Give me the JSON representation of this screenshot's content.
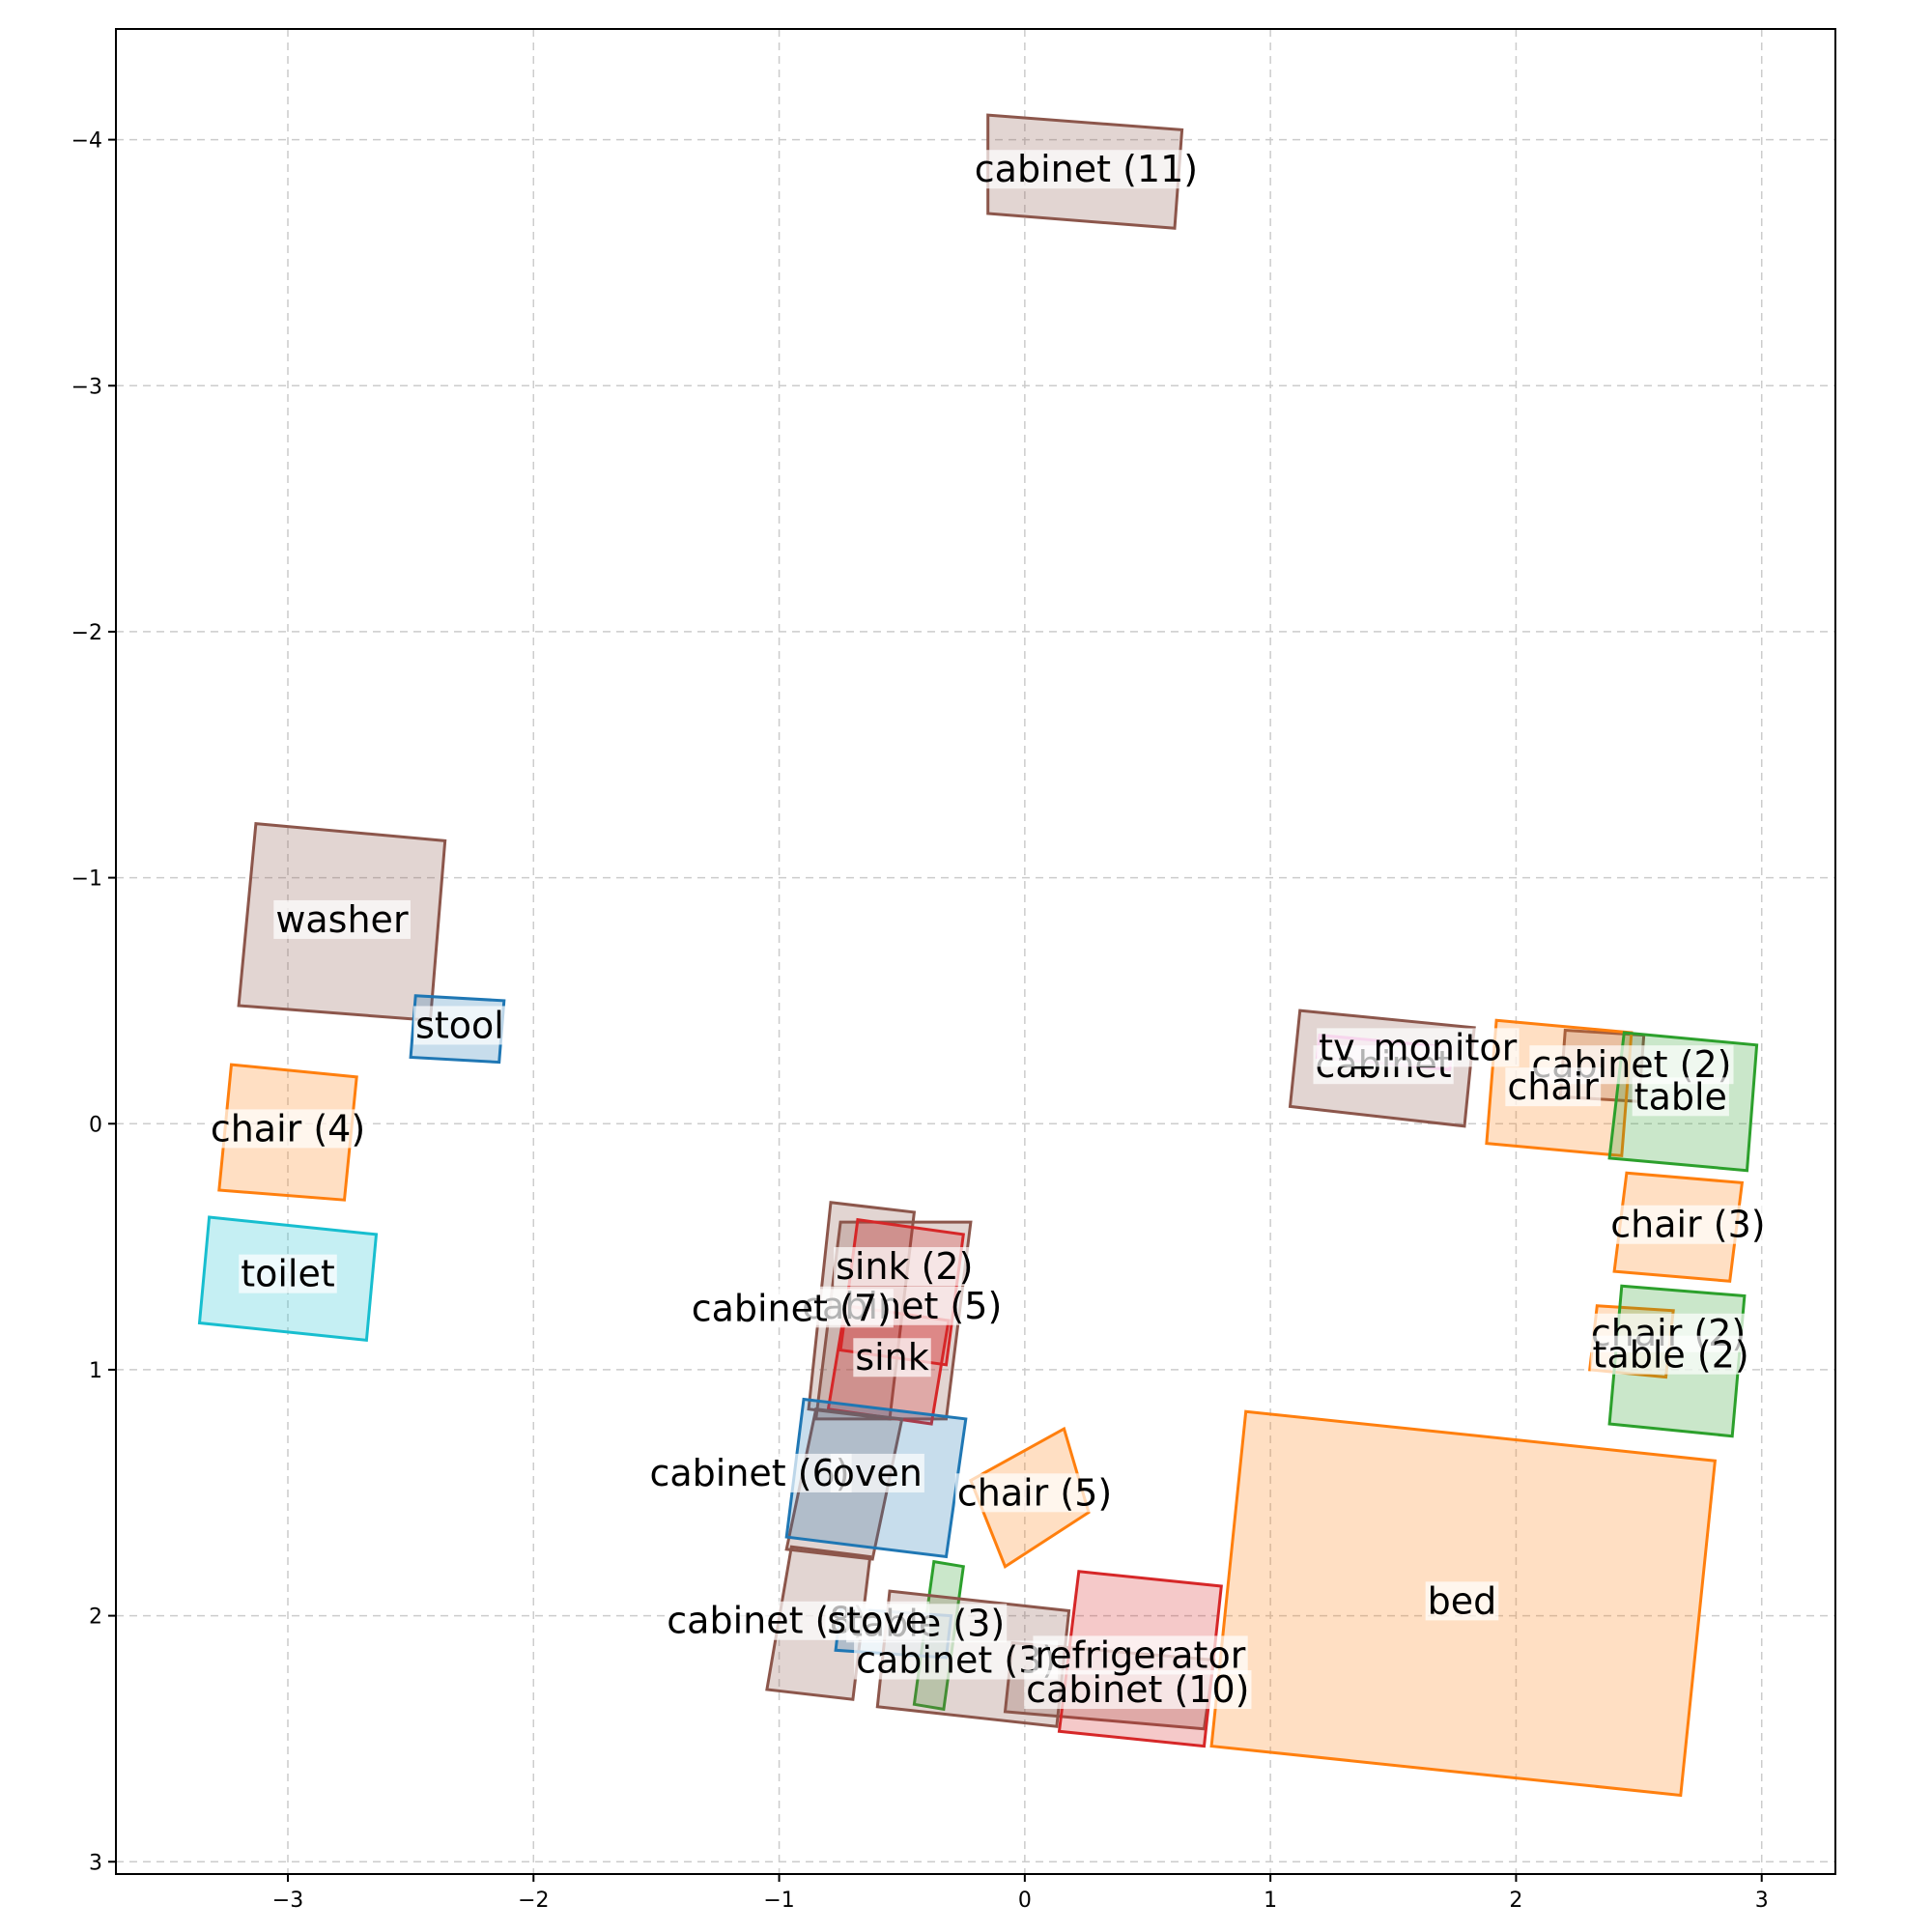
{
  "chart_data": {
    "type": "floor-plan-boxes",
    "title": "",
    "xlabel": "",
    "ylabel": "",
    "xlim": [
      -3.7,
      3.3
    ],
    "ylim": [
      3.05,
      -4.45
    ],
    "grid": true,
    "x_ticks": [
      -3,
      -2,
      -1,
      0,
      1,
      2,
      3
    ],
    "x_tick_labels": [
      "−3",
      "−2",
      "−1",
      "0",
      "1",
      "2",
      "3"
    ],
    "y_ticks": [
      -4,
      -3,
      -2,
      -1,
      0,
      1,
      2,
      3
    ],
    "y_tick_labels": [
      "−4",
      "−3",
      "−2",
      "−1",
      "0",
      "1",
      "2",
      "3"
    ],
    "colors": {
      "cabinet": "#8c564b",
      "chair": "#ff7f0e",
      "table": "#2ca02c",
      "sink": "#d62728",
      "stove": "#1f77b4",
      "stool": "#1f77b4",
      "oven": "#1f77b4",
      "toilet": "#17becf",
      "refrigerator": "#d62728",
      "bed": "#ff7f0e",
      "washer": "#8c564b",
      "tv_monitor": "#e377c2"
    },
    "objects": [
      {
        "label": "cabinet (11)",
        "category": "cabinet",
        "pts": [
          [
            -0.15,
            -4.1
          ],
          [
            0.64,
            -4.04
          ],
          [
            0.61,
            -3.64
          ],
          [
            -0.15,
            -3.7
          ]
        ],
        "label_at": [
          0.25,
          -3.87
        ]
      },
      {
        "label": "washer",
        "category": "washer",
        "pts": [
          [
            -3.13,
            -1.22
          ],
          [
            -2.36,
            -1.15
          ],
          [
            -2.42,
            -0.42
          ],
          [
            -3.2,
            -0.48
          ]
        ],
        "label_at": [
          -2.78,
          -0.82
        ]
      },
      {
        "label": "stool",
        "category": "stool",
        "pts": [
          [
            -2.48,
            -0.52
          ],
          [
            -2.12,
            -0.5
          ],
          [
            -2.14,
            -0.25
          ],
          [
            -2.5,
            -0.27
          ]
        ],
        "label_at": [
          -2.3,
          -0.39
        ]
      },
      {
        "label": "chair (4)",
        "category": "chair",
        "pts": [
          [
            -3.23,
            -0.24
          ],
          [
            -2.72,
            -0.19
          ],
          [
            -2.77,
            0.31
          ],
          [
            -3.28,
            0.27
          ]
        ],
        "label_at": [
          -3.0,
          0.03
        ]
      },
      {
        "label": "toilet",
        "category": "toilet",
        "pts": [
          [
            -3.32,
            0.38
          ],
          [
            -2.64,
            0.45
          ],
          [
            -2.68,
            0.88
          ],
          [
            -3.36,
            0.81
          ]
        ],
        "label_at": [
          -3.0,
          0.62
        ]
      },
      {
        "label": "cabinet (5)",
        "category": "cabinet",
        "pts": [
          [
            -0.75,
            0.4
          ],
          [
            -0.22,
            0.4
          ],
          [
            -0.32,
            1.2
          ],
          [
            -0.85,
            1.2
          ]
        ],
        "label_at": [
          -0.5,
          0.75
        ]
      },
      {
        "label": "cabinet (7)",
        "category": "cabinet",
        "pts": [
          [
            -0.79,
            0.32
          ],
          [
            -0.45,
            0.36
          ],
          [
            -0.55,
            1.2
          ],
          [
            -0.88,
            1.16
          ]
        ],
        "label_at": [
          -0.95,
          0.76
        ]
      },
      {
        "label": "sink (2)",
        "category": "sink",
        "pts": [
          [
            -0.68,
            0.39
          ],
          [
            -0.25,
            0.45
          ],
          [
            -0.32,
            0.98
          ],
          [
            -0.75,
            0.92
          ]
        ],
        "label_at": [
          -0.49,
          0.59
        ]
      },
      {
        "label": "sink",
        "category": "sink",
        "pts": [
          [
            -0.73,
            0.74
          ],
          [
            -0.31,
            0.8
          ],
          [
            -0.38,
            1.22
          ],
          [
            -0.8,
            1.16
          ]
        ],
        "label_at": [
          -0.54,
          0.96
        ]
      },
      {
        "label": "cabinet (6)",
        "category": "cabinet",
        "pts": [
          [
            -0.85,
            1.16
          ],
          [
            -0.5,
            1.2
          ],
          [
            -0.62,
            1.77
          ],
          [
            -0.97,
            1.73
          ]
        ],
        "label_at": [
          -1.12,
          1.43
        ]
      },
      {
        "label": "oven",
        "category": "oven",
        "pts": [
          [
            -0.9,
            1.12
          ],
          [
            -0.24,
            1.2
          ],
          [
            -0.32,
            1.76
          ],
          [
            -0.97,
            1.68
          ]
        ],
        "label_at": [
          -0.6,
          1.43
        ]
      },
      {
        "label": "chair (5)",
        "category": "chair",
        "pts": [
          [
            0.16,
            1.24
          ],
          [
            0.26,
            1.58
          ],
          [
            -0.08,
            1.8
          ],
          [
            -0.22,
            1.45
          ]
        ],
        "label_at": [
          0.04,
          1.51
        ]
      },
      {
        "label": "cabinet (8)",
        "category": "cabinet",
        "pts": [
          [
            -0.95,
            1.72
          ],
          [
            -0.63,
            1.76
          ],
          [
            -0.7,
            2.34
          ],
          [
            -1.05,
            2.3
          ]
        ],
        "label_at": [
          -1.05,
          2.03
        ]
      },
      {
        "label": "table (3)",
        "category": "table",
        "pts": [
          [
            -0.37,
            1.78
          ],
          [
            -0.25,
            1.8
          ],
          [
            -0.33,
            2.38
          ],
          [
            -0.45,
            2.36
          ]
        ],
        "label_at": [
          -0.4,
          2.04
        ]
      },
      {
        "label": "stove",
        "category": "stove",
        "pts": [
          [
            -0.75,
            1.97
          ],
          [
            -0.3,
            2.0
          ],
          [
            -0.32,
            2.17
          ],
          [
            -0.77,
            2.14
          ]
        ],
        "label_at": [
          -0.6,
          2.03
        ]
      },
      {
        "label": "cabinet (3)",
        "category": "cabinet",
        "pts": [
          [
            -0.55,
            1.9
          ],
          [
            0.18,
            1.98
          ],
          [
            0.13,
            2.45
          ],
          [
            -0.6,
            2.37
          ]
        ],
        "label_at": [
          -0.28,
          2.19
        ]
      },
      {
        "label": "cabinet (10)",
        "category": "cabinet",
        "pts": [
          [
            -0.05,
            2.11
          ],
          [
            0.77,
            2.18
          ],
          [
            0.73,
            2.46
          ],
          [
            -0.08,
            2.39
          ]
        ],
        "label_at": [
          0.46,
          2.31
        ]
      },
      {
        "label": "refrigerator",
        "category": "refrigerator",
        "pts": [
          [
            0.22,
            1.82
          ],
          [
            0.8,
            1.88
          ],
          [
            0.73,
            2.53
          ],
          [
            0.14,
            2.47
          ]
        ],
        "label_at": [
          0.47,
          2.17
        ]
      },
      {
        "label": "bed",
        "category": "bed",
        "pts": [
          [
            0.9,
            1.17
          ],
          [
            2.81,
            1.37
          ],
          [
            2.67,
            2.73
          ],
          [
            0.76,
            2.53
          ]
        ],
        "label_at": [
          1.78,
          1.95
        ]
      },
      {
        "label": "cabinet",
        "category": "cabinet",
        "pts": [
          [
            1.12,
            -0.46
          ],
          [
            1.83,
            -0.39
          ],
          [
            1.79,
            0.01
          ],
          [
            1.08,
            -0.07
          ]
        ],
        "label_at": [
          1.46,
          -0.23
        ]
      },
      {
        "label": "tv_monitor",
        "category": "tv_monitor",
        "pts": [
          [
            1.2,
            -0.36
          ],
          [
            1.74,
            -0.31
          ],
          [
            1.73,
            -0.22
          ],
          [
            1.19,
            -0.27
          ]
        ],
        "label_at": [
          1.6,
          -0.3
        ]
      },
      {
        "label": "cabinet (2)",
        "category": "cabinet",
        "pts": [
          [
            2.2,
            -0.38
          ],
          [
            2.52,
            -0.36
          ],
          [
            2.5,
            -0.09
          ],
          [
            2.18,
            -0.11
          ]
        ],
        "label_at": [
          2.47,
          -0.23
        ]
      },
      {
        "label": "chair",
        "category": "chair",
        "pts": [
          [
            1.92,
            -0.42
          ],
          [
            2.47,
            -0.37
          ],
          [
            2.43,
            0.13
          ],
          [
            1.88,
            0.08
          ]
        ],
        "label_at": [
          2.15,
          -0.14
        ]
      },
      {
        "label": "table",
        "category": "table",
        "pts": [
          [
            2.44,
            -0.37
          ],
          [
            2.98,
            -0.32
          ],
          [
            2.94,
            0.19
          ],
          [
            2.38,
            0.14
          ]
        ],
        "label_at": [
          2.67,
          -0.1
        ]
      },
      {
        "label": "chair (3)",
        "category": "chair",
        "pts": [
          [
            2.45,
            0.2
          ],
          [
            2.92,
            0.24
          ],
          [
            2.87,
            0.64
          ],
          [
            2.4,
            0.6
          ]
        ],
        "label_at": [
          2.7,
          0.42
        ]
      },
      {
        "label": "chair (2)",
        "category": "chair",
        "pts": [
          [
            2.33,
            0.74
          ],
          [
            2.64,
            0.76
          ],
          [
            2.61,
            1.03
          ],
          [
            2.3,
            1.0
          ]
        ],
        "label_at": [
          2.62,
          0.86
        ]
      },
      {
        "label": "table (2)",
        "category": "table",
        "pts": [
          [
            2.43,
            0.66
          ],
          [
            2.93,
            0.7
          ],
          [
            2.88,
            1.27
          ],
          [
            2.38,
            1.22
          ]
        ],
        "label_at": [
          2.63,
          0.95
        ]
      }
    ]
  }
}
